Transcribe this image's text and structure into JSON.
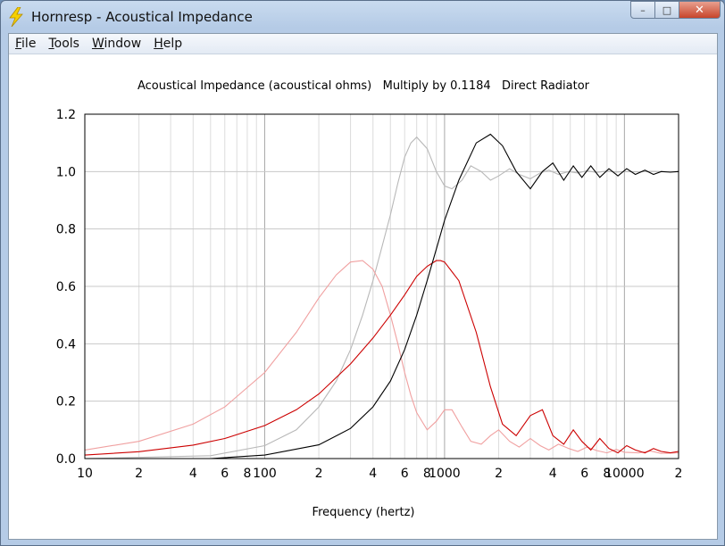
{
  "window": {
    "title": "Hornresp - Acoustical Impedance",
    "controls": {
      "minimize": "–",
      "maximize": "□",
      "close": "✕"
    },
    "icon": "lightning-bolt-icon"
  },
  "menu": [
    {
      "id": "file",
      "label": "File",
      "mnemonic": "F",
      "rest": "ile"
    },
    {
      "id": "tools",
      "label": "Tools",
      "mnemonic": "T",
      "rest": "ools"
    },
    {
      "id": "window",
      "label": "Window",
      "mnemonic": "W",
      "rest": "indow"
    },
    {
      "id": "help",
      "label": "Help",
      "mnemonic": "H",
      "rest": "elp"
    }
  ],
  "chart_data": {
    "type": "line",
    "title": "Acoustical Impedance (acoustical ohms)   Multiply by 0.1184   Direct Radiator",
    "xlabel": "Frequency (hertz)",
    "ylabel": "",
    "xscale": "log",
    "xlim": [
      10,
      20000
    ],
    "ylim": [
      0,
      1.2
    ],
    "yticks": [
      "0.0",
      "0.2",
      "0.4",
      "0.6",
      "0.8",
      "1.0",
      "1.2"
    ],
    "xticks": [
      {
        "v": 10,
        "label": "10"
      },
      {
        "v": 20,
        "label": "2"
      },
      {
        "v": 40,
        "label": "4"
      },
      {
        "v": 60,
        "label": "6"
      },
      {
        "v": 80,
        "label": "8"
      },
      {
        "v": 100,
        "label": "100"
      },
      {
        "v": 200,
        "label": "2"
      },
      {
        "v": 400,
        "label": "4"
      },
      {
        "v": 600,
        "label": "6"
      },
      {
        "v": 800,
        "label": "8"
      },
      {
        "v": 1000,
        "label": "1000"
      },
      {
        "v": 2000,
        "label": "2"
      },
      {
        "v": 4000,
        "label": "4"
      },
      {
        "v": 6000,
        "label": "6"
      },
      {
        "v": 8000,
        "label": "8"
      },
      {
        "v": 10000,
        "label": "10000"
      },
      {
        "v": 20000,
        "label": "2"
      }
    ],
    "grid": true,
    "series": [
      {
        "color": "#000000",
        "kind": "resistance-main",
        "x": [
          10,
          50,
          100,
          200,
          300,
          400,
          500,
          600,
          700,
          800,
          900,
          1000,
          1200,
          1500,
          1800,
          2100,
          2500,
          3000,
          3500,
          4000,
          4600,
          5200,
          5800,
          6500,
          7300,
          8200,
          9200,
          10300,
          11500,
          13000,
          14500,
          16000,
          18000,
          20000
        ],
        "y": [
          0.0,
          0.0,
          0.012,
          0.048,
          0.105,
          0.18,
          0.27,
          0.38,
          0.5,
          0.62,
          0.73,
          0.83,
          0.97,
          1.1,
          1.13,
          1.09,
          1.0,
          0.94,
          1.0,
          1.03,
          0.97,
          1.02,
          0.98,
          1.02,
          0.98,
          1.01,
          0.985,
          1.01,
          0.99,
          1.005,
          0.99,
          1.0,
          0.998,
          1.0
        ]
      },
      {
        "color": "#cc0000",
        "kind": "reactance-main",
        "x": [
          10,
          20,
          40,
          60,
          100,
          150,
          200,
          300,
          400,
          500,
          600,
          700,
          800,
          900,
          950,
          1000,
          1200,
          1500,
          1800,
          2100,
          2500,
          3000,
          3500,
          4000,
          4600,
          5200,
          5800,
          6500,
          7300,
          8200,
          9200,
          10300,
          11500,
          13000,
          14500,
          16000,
          18000,
          20000
        ],
        "y": [
          0.012,
          0.024,
          0.047,
          0.07,
          0.115,
          0.17,
          0.225,
          0.33,
          0.42,
          0.5,
          0.57,
          0.635,
          0.67,
          0.69,
          0.69,
          0.685,
          0.62,
          0.44,
          0.25,
          0.12,
          0.08,
          0.15,
          0.17,
          0.08,
          0.05,
          0.1,
          0.06,
          0.03,
          0.07,
          0.035,
          0.02,
          0.045,
          0.03,
          0.02,
          0.035,
          0.025,
          0.02,
          0.025
        ]
      },
      {
        "color": "#b8b8b8",
        "kind": "resistance-faded",
        "x": [
          10,
          50,
          100,
          150,
          200,
          250,
          300,
          350,
          400,
          450,
          500,
          550,
          600,
          650,
          700,
          800,
          900,
          1000,
          1100,
          1250,
          1400,
          1600,
          1800,
          2000,
          2300,
          2600,
          3000,
          3400,
          3800,
          4300,
          4900,
          5500,
          6200,
          7000,
          8000,
          9000,
          10000,
          12000,
          14000,
          16000,
          20000
        ],
        "y": [
          0.0,
          0.01,
          0.045,
          0.1,
          0.18,
          0.27,
          0.38,
          0.5,
          0.62,
          0.74,
          0.85,
          0.96,
          1.05,
          1.1,
          1.12,
          1.08,
          1.0,
          0.95,
          0.94,
          0.97,
          1.02,
          1.0,
          0.97,
          0.985,
          1.01,
          0.99,
          0.975,
          0.995,
          1.005,
          0.99,
          1.0,
          0.995,
          1.003,
          0.997,
          1.002,
          0.998,
          1.0,
          0.999,
          1.001,
          1.0,
          1.0
        ]
      },
      {
        "color": "#f0a0a0",
        "kind": "reactance-faded",
        "x": [
          10,
          20,
          40,
          60,
          100,
          150,
          200,
          250,
          300,
          350,
          400,
          450,
          500,
          550,
          600,
          650,
          700,
          800,
          900,
          1000,
          1100,
          1250,
          1400,
          1600,
          1800,
          2000,
          2300,
          2600,
          3000,
          3400,
          3800,
          4300,
          4900,
          5500,
          6200,
          7000,
          8000,
          9000,
          10000,
          12000,
          14000,
          16000,
          20000
        ],
        "y": [
          0.03,
          0.06,
          0.12,
          0.18,
          0.3,
          0.44,
          0.56,
          0.64,
          0.685,
          0.69,
          0.66,
          0.6,
          0.5,
          0.4,
          0.3,
          0.22,
          0.16,
          0.1,
          0.13,
          0.17,
          0.17,
          0.11,
          0.06,
          0.05,
          0.08,
          0.1,
          0.06,
          0.04,
          0.07,
          0.045,
          0.03,
          0.05,
          0.035,
          0.025,
          0.04,
          0.028,
          0.02,
          0.032,
          0.022,
          0.02,
          0.026,
          0.018,
          0.02
        ]
      }
    ]
  }
}
